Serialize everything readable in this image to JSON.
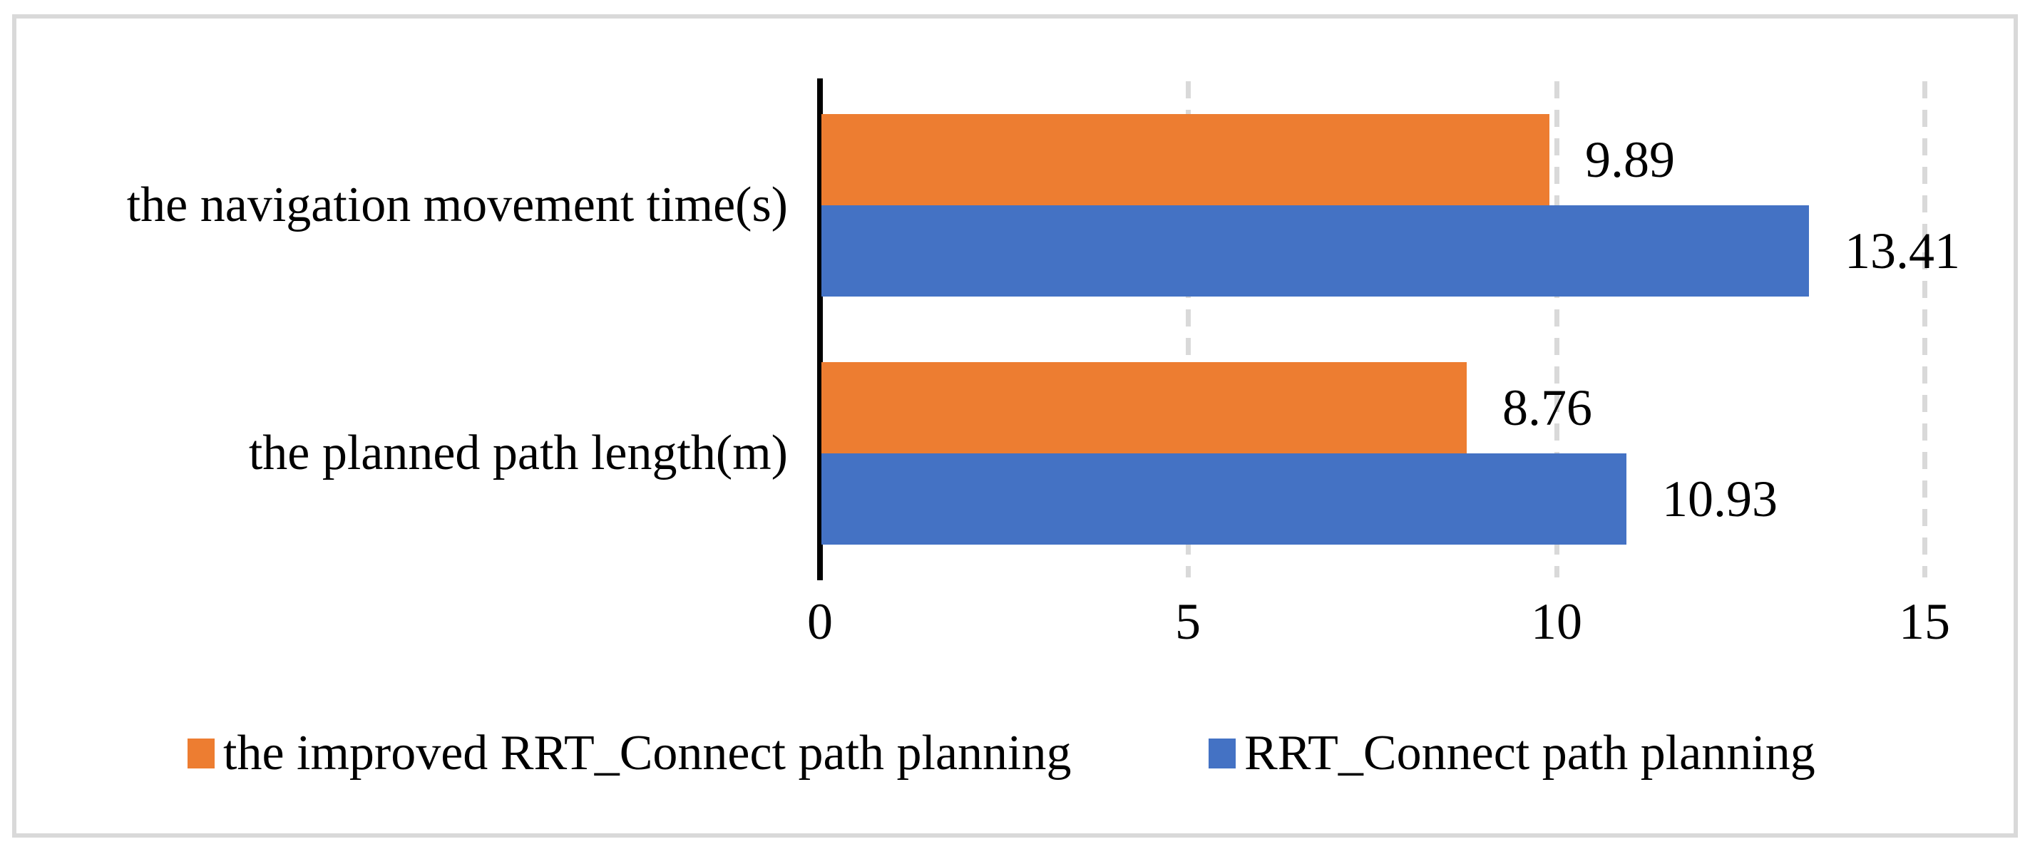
{
  "figure": {
    "background_color": "#FFFFFF",
    "frame_border_color": "#D9D9D9"
  },
  "chart_data": {
    "type": "bar",
    "orientation": "horizontal",
    "title": "",
    "xlabel": "",
    "ylabel": "",
    "categories": [
      "the navigation movement time(s)",
      "the planned path length(m)"
    ],
    "series": [
      {
        "name": "the improved RRT_Connect path planning",
        "color": "#ED7D31",
        "values": [
          9.89,
          8.76
        ],
        "value_labels": [
          "9.89",
          "8.76"
        ]
      },
      {
        "name": "RRT_Connect path planning",
        "color": "#4472C4",
        "values": [
          13.41,
          10.93
        ],
        "value_labels": [
          "13.41",
          "10.93"
        ]
      }
    ],
    "xlim": [
      0,
      15
    ],
    "xticks": [
      0,
      5,
      10,
      15
    ],
    "xtick_labels": [
      "0",
      "5",
      "10",
      "15"
    ],
    "grid": "vertical dashed gridlines at 5, 10, 15",
    "gridline_color": "#D9D9D9",
    "axis_line_color": "#000000",
    "text_color": "#000000",
    "legend_position": "bottom"
  }
}
